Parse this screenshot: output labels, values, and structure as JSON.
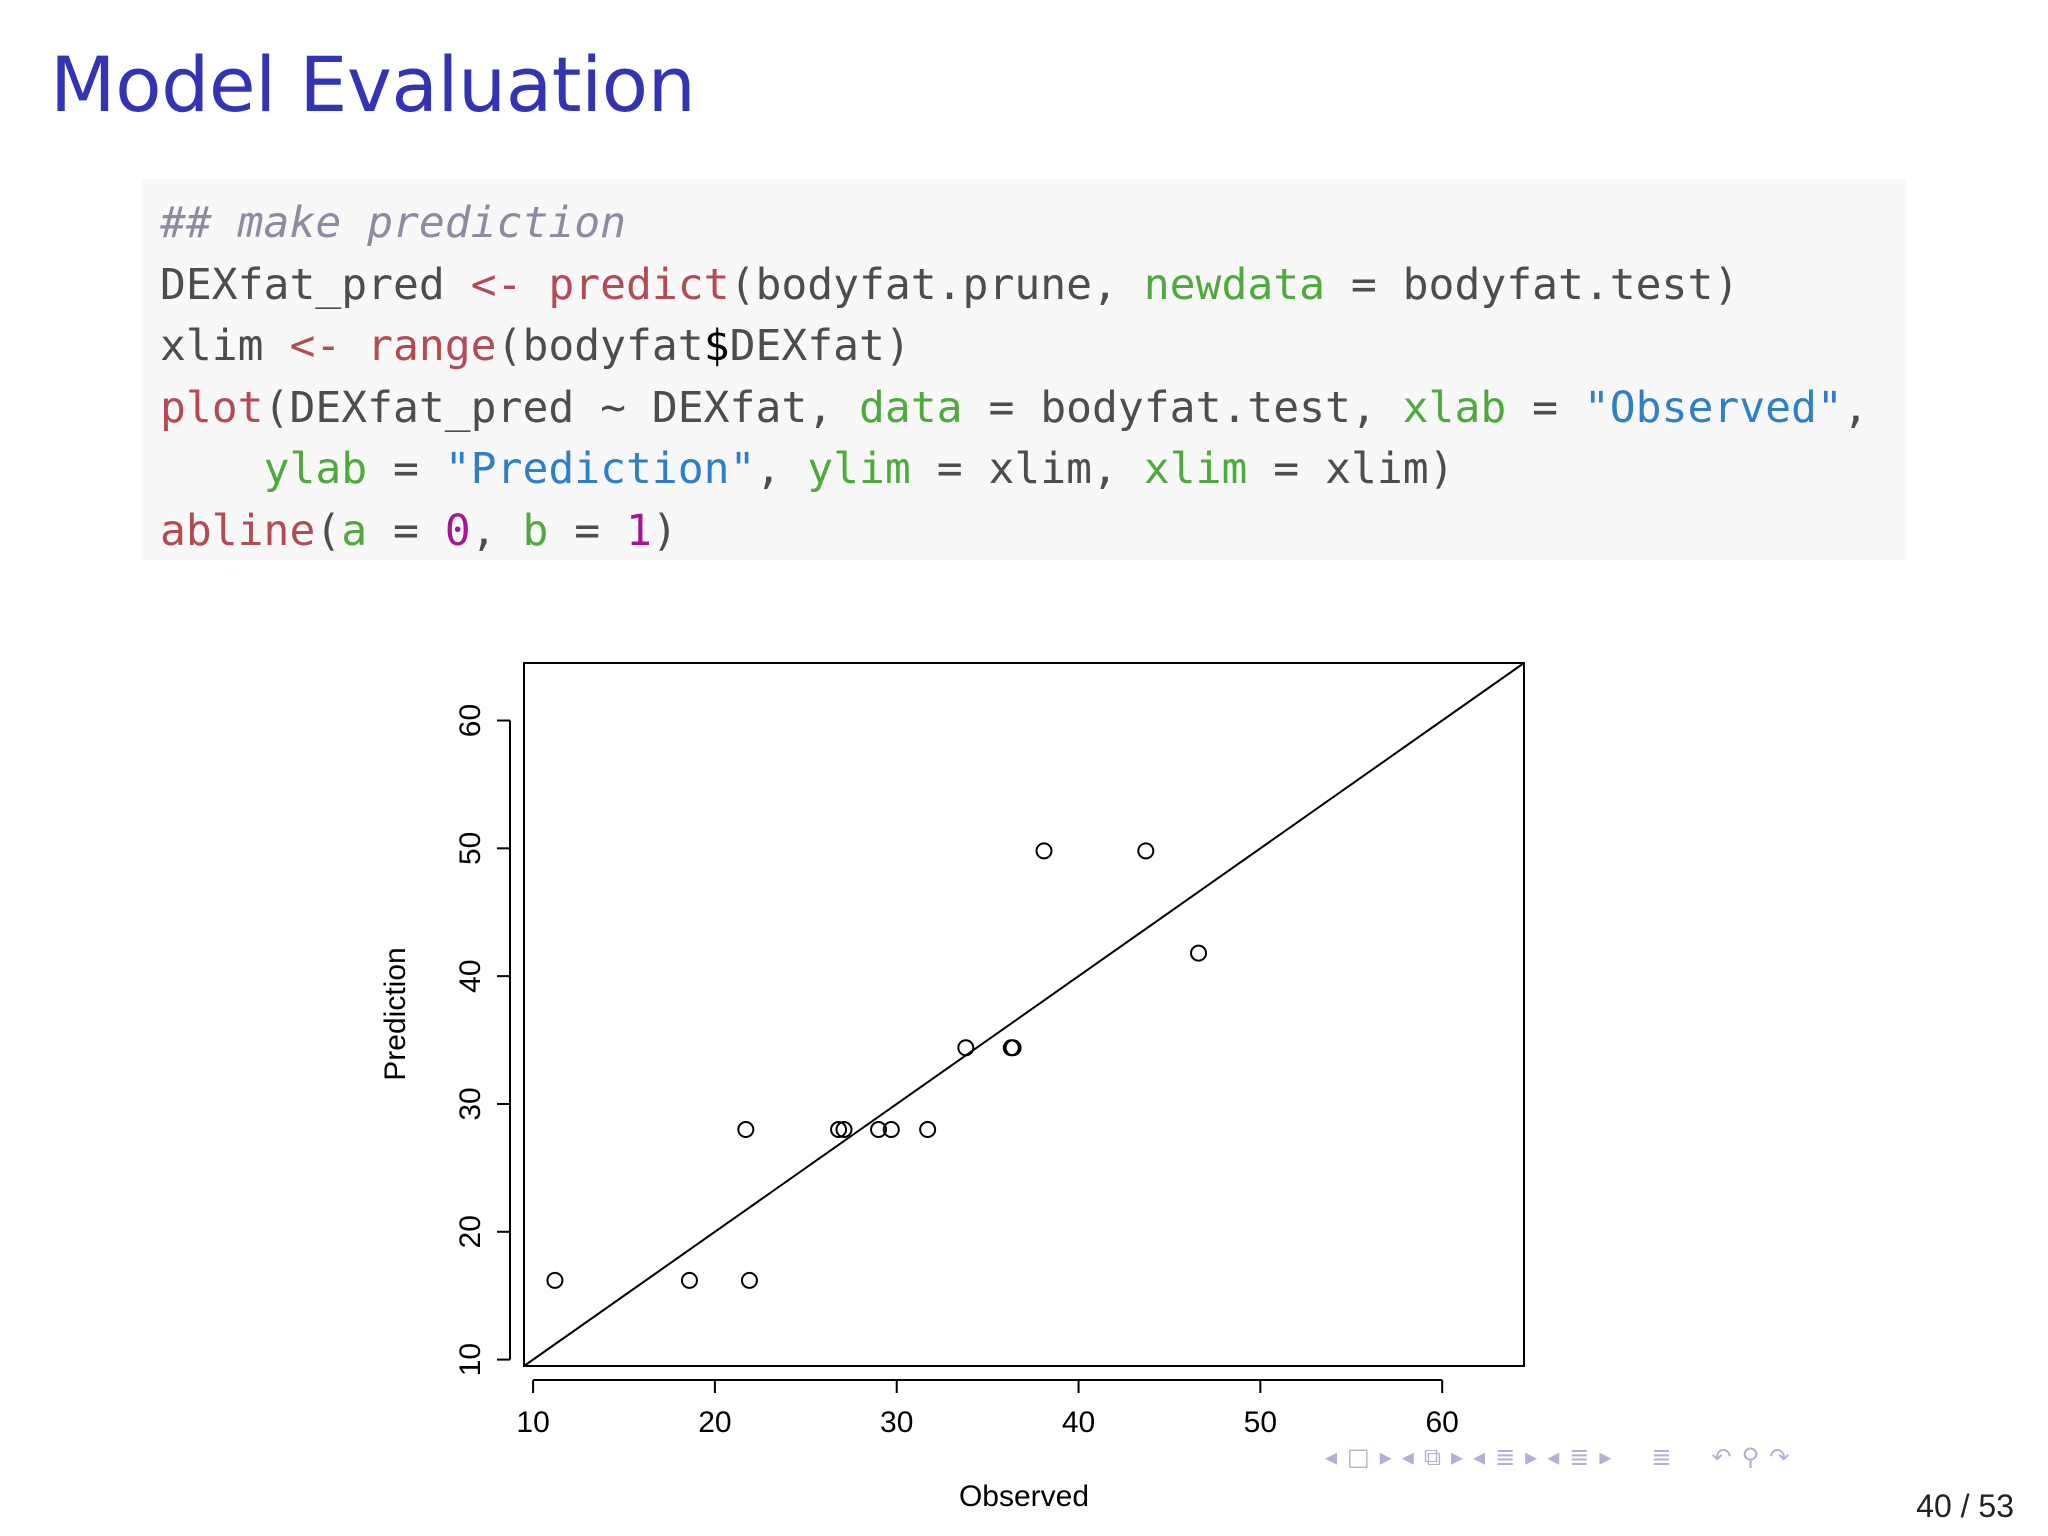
{
  "slide": {
    "title": "Model Evaluation",
    "page": {
      "current": "40",
      "sep": "/",
      "total": "53"
    }
  },
  "code": {
    "comment": "## make prediction",
    "l1": {
      "var": "DEXfat_pred",
      "assign": "<-",
      "fn": "predict",
      "open": "(bodyfat.prune, ",
      "arg": "newdata",
      "eq": " = ",
      "rest": "bodyfat.test)"
    },
    "l2": {
      "var": "xlim",
      "assign": "<-",
      "fn": "range",
      "pre": "(bodyfat",
      "dollar": "$",
      "post": "DEXfat)"
    },
    "l3": {
      "fn": "plot",
      "open": "(DEXfat_pred ~ DEXfat, ",
      "arg1": "data",
      "eq": " = ",
      "val1": "bodyfat.test, ",
      "arg2": "xlab",
      "val2": "\"Observed\"",
      "end": ","
    },
    "l4": {
      "indent": "    ",
      "arg1": "ylab",
      "eq": " = ",
      "str1": "\"Prediction\"",
      "sep1": ", ",
      "arg2": "ylim",
      "val2": "xlim, ",
      "arg3": "xlim",
      "val3": "xlim)"
    },
    "l5": {
      "fn": "abline",
      "open": "(",
      "arg1": "a",
      "eq": " = ",
      "num1": "0",
      "sep": ", ",
      "arg2": "b",
      "num2": "1",
      "close": ")"
    }
  },
  "chart_data": {
    "type": "scatter",
    "xlabel": "Observed",
    "ylabel": "Prediction",
    "xlim": [
      9.5,
      64.5
    ],
    "ylim": [
      9.5,
      64.5
    ],
    "xticks": [
      10,
      20,
      30,
      40,
      50,
      60
    ],
    "yticks": [
      10,
      20,
      30,
      40,
      50,
      60
    ],
    "points": [
      {
        "x": 11.2,
        "y": 16.2
      },
      {
        "x": 18.6,
        "y": 16.2
      },
      {
        "x": 21.9,
        "y": 16.2
      },
      {
        "x": 21.7,
        "y": 28.0
      },
      {
        "x": 26.8,
        "y": 28.0
      },
      {
        "x": 27.1,
        "y": 28.0
      },
      {
        "x": 29.0,
        "y": 28.0
      },
      {
        "x": 29.7,
        "y": 28.0
      },
      {
        "x": 31.7,
        "y": 28.0
      },
      {
        "x": 33.8,
        "y": 34.4
      },
      {
        "x": 36.3,
        "y": 34.4
      },
      {
        "x": 36.4,
        "y": 34.4
      },
      {
        "x": 38.1,
        "y": 49.8
      },
      {
        "x": 43.7,
        "y": 49.8
      },
      {
        "x": 46.6,
        "y": 41.8
      }
    ],
    "abline": {
      "a": 0,
      "b": 1
    },
    "grid": false,
    "legend": "none"
  }
}
